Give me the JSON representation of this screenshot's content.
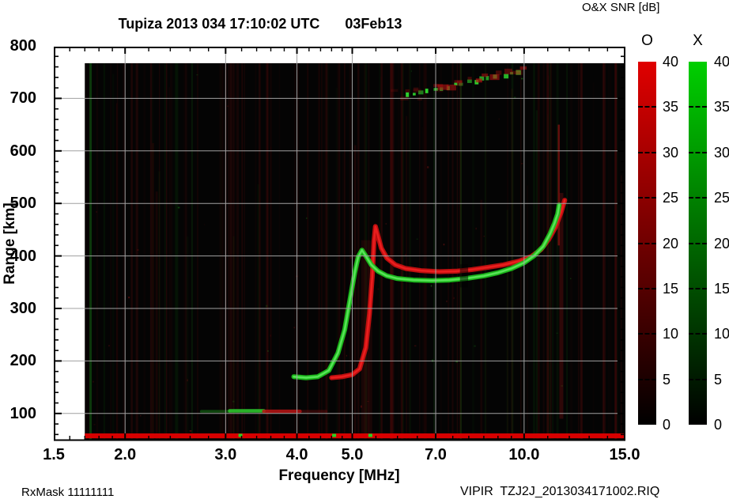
{
  "figure": {
    "title": "Tupiza 2013 034 17:10:02 UTC",
    "title_date": "03Feb13",
    "footer_left": "RxMask 11111111",
    "footer_right": "VIPIR  TZJ2J_2013034171002.RIQ"
  },
  "chart_data": {
    "type": "heatmap",
    "title": "Tupiza 2013 034 17:10:02 UTC  03Feb13",
    "xlabel": "Frequency [MHz]",
    "ylabel": "Range [km]",
    "x_scale": "log",
    "xlim": [
      1.5,
      15.0
    ],
    "ylim": [
      47,
      800
    ],
    "grid": true,
    "x_ticks": [
      {
        "f": 1.5,
        "label": "1.5",
        "grid": false
      },
      {
        "f": 2.0,
        "label": "2.0",
        "grid": true
      },
      {
        "f": 3.0,
        "label": "3.0",
        "grid": true
      },
      {
        "f": 4.0,
        "label": "4.0",
        "grid": true
      },
      {
        "f": 5.0,
        "label": "5.0",
        "grid": true
      },
      {
        "f": 7.0,
        "label": "7.0",
        "grid": true
      },
      {
        "f": 10.0,
        "label": "10.0",
        "grid": true
      },
      {
        "f": 15.0,
        "label": "15.0",
        "grid": false
      }
    ],
    "y_ticks": [
      {
        "r": 100,
        "label": "100"
      },
      {
        "r": 200,
        "label": "200"
      },
      {
        "r": 300,
        "label": "300"
      },
      {
        "r": 400,
        "label": "400"
      },
      {
        "r": 500,
        "label": "500"
      },
      {
        "r": 600,
        "label": "600"
      },
      {
        "r": 700,
        "label": "700"
      },
      {
        "r": 800,
        "label": "800"
      }
    ],
    "y_minor_step_km": 20,
    "data_region": {
      "f_min": 1.7,
      "f_max": 15.0,
      "r_max_km": 767,
      "background": "#040404"
    },
    "colorbar_title": "O&X SNR [dB]",
    "colorbars": [
      {
        "name": "O",
        "top_color": "#e00000",
        "min": 0,
        "max": 40,
        "tick_step": 5,
        "tick_labels": [
          "40",
          "35",
          "30",
          "25",
          "20",
          "15",
          "10",
          "5",
          "0"
        ]
      },
      {
        "name": "X",
        "top_color": "#00cf00",
        "min": 0,
        "max": 40,
        "tick_step": 5,
        "tick_labels": [
          "40",
          "35",
          "30",
          "25",
          "20",
          "15",
          "10",
          "5",
          "0"
        ]
      }
    ],
    "series": [
      {
        "name": "F-trace O-mode",
        "style": "trace",
        "color": "#c81010",
        "core": "#ef2020",
        "points": [
          [
            4.6,
            168
          ],
          [
            4.8,
            170
          ],
          [
            5.0,
            174
          ],
          [
            5.15,
            185
          ],
          [
            5.28,
            225
          ],
          [
            5.36,
            290
          ],
          [
            5.42,
            360
          ],
          [
            5.46,
            430
          ],
          [
            5.49,
            456
          ],
          [
            5.54,
            440
          ],
          [
            5.62,
            415
          ],
          [
            5.75,
            396
          ],
          [
            5.95,
            383
          ],
          [
            6.2,
            376
          ],
          [
            6.6,
            372
          ],
          [
            7.1,
            370
          ],
          [
            7.6,
            371
          ],
          [
            8.1,
            374
          ],
          [
            8.6,
            378
          ],
          [
            9.2,
            383
          ],
          [
            9.8,
            390
          ],
          [
            10.3,
            399
          ],
          [
            10.7,
            412
          ],
          [
            11.05,
            432
          ],
          [
            11.35,
            455
          ],
          [
            11.6,
            482
          ],
          [
            11.78,
            506
          ]
        ]
      },
      {
        "name": "F-trace X-mode",
        "style": "trace",
        "color": "#1cc21c",
        "core": "#5ee85e",
        "points": [
          [
            3.95,
            170
          ],
          [
            4.15,
            168
          ],
          [
            4.35,
            170
          ],
          [
            4.55,
            182
          ],
          [
            4.72,
            215
          ],
          [
            4.85,
            260
          ],
          [
            4.95,
            315
          ],
          [
            5.05,
            368
          ],
          [
            5.12,
            398
          ],
          [
            5.2,
            411
          ],
          [
            5.28,
            400
          ],
          [
            5.4,
            383
          ],
          [
            5.55,
            371
          ],
          [
            5.75,
            362
          ],
          [
            6.0,
            357
          ],
          [
            6.4,
            354
          ],
          [
            6.9,
            353
          ],
          [
            7.4,
            354
          ],
          [
            7.9,
            357
          ],
          [
            8.5,
            362
          ],
          [
            9.0,
            368
          ],
          [
            9.5,
            376
          ],
          [
            10.0,
            387
          ],
          [
            10.4,
            400
          ],
          [
            10.8,
            418
          ],
          [
            11.1,
            442
          ],
          [
            11.3,
            462
          ],
          [
            11.45,
            480
          ],
          [
            11.52,
            497
          ]
        ]
      },
      {
        "name": "E-layer X dim",
        "style": "line",
        "color": "#1da81d",
        "alpha": 0.4,
        "w": 3.5,
        "points": [
          [
            2.72,
            104
          ],
          [
            3.05,
            104
          ]
        ]
      },
      {
        "name": "E-layer X",
        "style": "line",
        "color": "#2cc42c",
        "alpha": 0.9,
        "w": 4.5,
        "points": [
          [
            3.05,
            105
          ],
          [
            3.5,
            105
          ]
        ]
      },
      {
        "name": "E-layer O",
        "style": "line",
        "color": "#b81414",
        "alpha": 0.85,
        "w": 4.5,
        "points": [
          [
            3.5,
            104
          ],
          [
            4.05,
            104
          ]
        ]
      },
      {
        "name": "E-layer O tail",
        "style": "line",
        "color": "#8a1010",
        "alpha": 0.35,
        "w": 3.5,
        "points": [
          [
            4.05,
            104
          ],
          [
            4.5,
            104
          ]
        ]
      },
      {
        "name": "second-hop X dots",
        "style": "dots",
        "color": "#2ed42e",
        "from": [
          6.2,
          708
        ],
        "to": [
          9.65,
          752
        ]
      },
      {
        "name": "second-hop O smear",
        "style": "smear",
        "color": "#b01212",
        "from": [
          6.85,
          725
        ],
        "to": [
          9.95,
          762
        ]
      },
      {
        "name": "ground band",
        "style": "band",
        "color": "#e00000",
        "range_km": [
          55,
          62
        ],
        "f_span": [
          1.7,
          15.0
        ],
        "green_specks_mhz": [
          3.18,
          4.64,
          5.37
        ]
      }
    ],
    "features": {
      "trace_gap_mhz": [
        7.72,
        7.98
      ],
      "noise_streaks": [
        {
          "f": 1.74,
          "color": "green",
          "alpha": 0.25,
          "w": 3
        },
        {
          "f": 2.62,
          "color": "green",
          "alpha": 0.1,
          "w": 2
        },
        {
          "f": 7.75,
          "color": "green",
          "alpha": 0.14,
          "w": 2
        },
        {
          "f": 5.3,
          "color": "red",
          "alpha": 0.1,
          "w": 14,
          "r": [
            60,
            430
          ]
        },
        {
          "f": 11.5,
          "color": "red",
          "alpha": 0.45,
          "w": 2.5,
          "r": [
            420,
            650
          ]
        },
        {
          "f": 11.62,
          "color": "red",
          "alpha": 0.2,
          "w": 5,
          "r": [
            90,
            520
          ]
        },
        {
          "f": 11.0,
          "color": "red",
          "alpha": 0.15,
          "w": 3
        },
        {
          "f": 12.6,
          "color": "red",
          "alpha": 0.16,
          "w": 3
        },
        {
          "f": 13.8,
          "color": "red",
          "alpha": 0.12,
          "w": 4
        }
      ]
    }
  }
}
